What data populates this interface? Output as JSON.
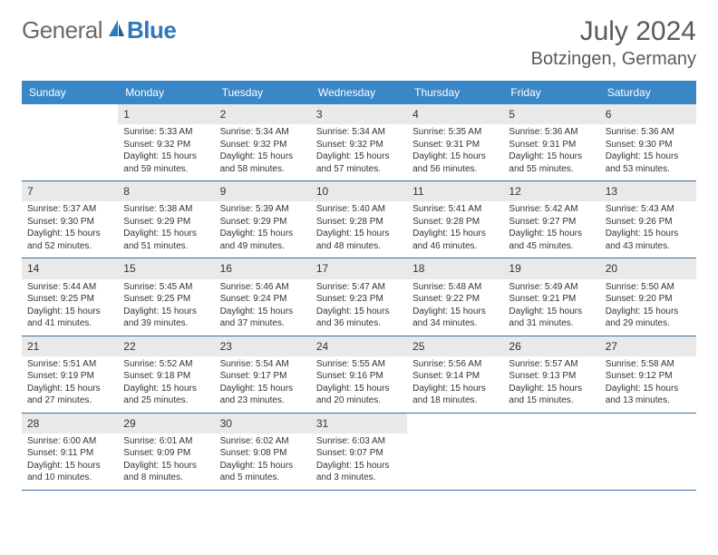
{
  "brand": {
    "general": "General",
    "blue": "Blue"
  },
  "title": {
    "month_year": "July 2024",
    "location": "Botzingen, Germany"
  },
  "colors": {
    "header_bg": "#3a87c8",
    "header_fg": "#ffffff",
    "strip_bg": "#e9e9e9",
    "week_border": "#3a6fa0",
    "text": "#333333",
    "brand_blue": "#2f78b9",
    "brand_gray": "#6a6a6a",
    "background": "#ffffff"
  },
  "typography": {
    "title_size": 30,
    "location_size": 20,
    "header_size": 12,
    "daynum_size": 12,
    "body_size": 10,
    "font_family": "Arial"
  },
  "days_header": [
    "Sunday",
    "Monday",
    "Tuesday",
    "Wednesday",
    "Thursday",
    "Friday",
    "Saturday"
  ],
  "weeks": [
    [
      null,
      {
        "n": "1",
        "sr": "Sunrise: 5:33 AM",
        "ss": "Sunset: 9:32 PM",
        "d1": "Daylight: 15 hours",
        "d2": "and 59 minutes."
      },
      {
        "n": "2",
        "sr": "Sunrise: 5:34 AM",
        "ss": "Sunset: 9:32 PM",
        "d1": "Daylight: 15 hours",
        "d2": "and 58 minutes."
      },
      {
        "n": "3",
        "sr": "Sunrise: 5:34 AM",
        "ss": "Sunset: 9:32 PM",
        "d1": "Daylight: 15 hours",
        "d2": "and 57 minutes."
      },
      {
        "n": "4",
        "sr": "Sunrise: 5:35 AM",
        "ss": "Sunset: 9:31 PM",
        "d1": "Daylight: 15 hours",
        "d2": "and 56 minutes."
      },
      {
        "n": "5",
        "sr": "Sunrise: 5:36 AM",
        "ss": "Sunset: 9:31 PM",
        "d1": "Daylight: 15 hours",
        "d2": "and 55 minutes."
      },
      {
        "n": "6",
        "sr": "Sunrise: 5:36 AM",
        "ss": "Sunset: 9:30 PM",
        "d1": "Daylight: 15 hours",
        "d2": "and 53 minutes."
      }
    ],
    [
      {
        "n": "7",
        "sr": "Sunrise: 5:37 AM",
        "ss": "Sunset: 9:30 PM",
        "d1": "Daylight: 15 hours",
        "d2": "and 52 minutes."
      },
      {
        "n": "8",
        "sr": "Sunrise: 5:38 AM",
        "ss": "Sunset: 9:29 PM",
        "d1": "Daylight: 15 hours",
        "d2": "and 51 minutes."
      },
      {
        "n": "9",
        "sr": "Sunrise: 5:39 AM",
        "ss": "Sunset: 9:29 PM",
        "d1": "Daylight: 15 hours",
        "d2": "and 49 minutes."
      },
      {
        "n": "10",
        "sr": "Sunrise: 5:40 AM",
        "ss": "Sunset: 9:28 PM",
        "d1": "Daylight: 15 hours",
        "d2": "and 48 minutes."
      },
      {
        "n": "11",
        "sr": "Sunrise: 5:41 AM",
        "ss": "Sunset: 9:28 PM",
        "d1": "Daylight: 15 hours",
        "d2": "and 46 minutes."
      },
      {
        "n": "12",
        "sr": "Sunrise: 5:42 AM",
        "ss": "Sunset: 9:27 PM",
        "d1": "Daylight: 15 hours",
        "d2": "and 45 minutes."
      },
      {
        "n": "13",
        "sr": "Sunrise: 5:43 AM",
        "ss": "Sunset: 9:26 PM",
        "d1": "Daylight: 15 hours",
        "d2": "and 43 minutes."
      }
    ],
    [
      {
        "n": "14",
        "sr": "Sunrise: 5:44 AM",
        "ss": "Sunset: 9:25 PM",
        "d1": "Daylight: 15 hours",
        "d2": "and 41 minutes."
      },
      {
        "n": "15",
        "sr": "Sunrise: 5:45 AM",
        "ss": "Sunset: 9:25 PM",
        "d1": "Daylight: 15 hours",
        "d2": "and 39 minutes."
      },
      {
        "n": "16",
        "sr": "Sunrise: 5:46 AM",
        "ss": "Sunset: 9:24 PM",
        "d1": "Daylight: 15 hours",
        "d2": "and 37 minutes."
      },
      {
        "n": "17",
        "sr": "Sunrise: 5:47 AM",
        "ss": "Sunset: 9:23 PM",
        "d1": "Daylight: 15 hours",
        "d2": "and 36 minutes."
      },
      {
        "n": "18",
        "sr": "Sunrise: 5:48 AM",
        "ss": "Sunset: 9:22 PM",
        "d1": "Daylight: 15 hours",
        "d2": "and 34 minutes."
      },
      {
        "n": "19",
        "sr": "Sunrise: 5:49 AM",
        "ss": "Sunset: 9:21 PM",
        "d1": "Daylight: 15 hours",
        "d2": "and 31 minutes."
      },
      {
        "n": "20",
        "sr": "Sunrise: 5:50 AM",
        "ss": "Sunset: 9:20 PM",
        "d1": "Daylight: 15 hours",
        "d2": "and 29 minutes."
      }
    ],
    [
      {
        "n": "21",
        "sr": "Sunrise: 5:51 AM",
        "ss": "Sunset: 9:19 PM",
        "d1": "Daylight: 15 hours",
        "d2": "and 27 minutes."
      },
      {
        "n": "22",
        "sr": "Sunrise: 5:52 AM",
        "ss": "Sunset: 9:18 PM",
        "d1": "Daylight: 15 hours",
        "d2": "and 25 minutes."
      },
      {
        "n": "23",
        "sr": "Sunrise: 5:54 AM",
        "ss": "Sunset: 9:17 PM",
        "d1": "Daylight: 15 hours",
        "d2": "and 23 minutes."
      },
      {
        "n": "24",
        "sr": "Sunrise: 5:55 AM",
        "ss": "Sunset: 9:16 PM",
        "d1": "Daylight: 15 hours",
        "d2": "and 20 minutes."
      },
      {
        "n": "25",
        "sr": "Sunrise: 5:56 AM",
        "ss": "Sunset: 9:14 PM",
        "d1": "Daylight: 15 hours",
        "d2": "and 18 minutes."
      },
      {
        "n": "26",
        "sr": "Sunrise: 5:57 AM",
        "ss": "Sunset: 9:13 PM",
        "d1": "Daylight: 15 hours",
        "d2": "and 15 minutes."
      },
      {
        "n": "27",
        "sr": "Sunrise: 5:58 AM",
        "ss": "Sunset: 9:12 PM",
        "d1": "Daylight: 15 hours",
        "d2": "and 13 minutes."
      }
    ],
    [
      {
        "n": "28",
        "sr": "Sunrise: 6:00 AM",
        "ss": "Sunset: 9:11 PM",
        "d1": "Daylight: 15 hours",
        "d2": "and 10 minutes."
      },
      {
        "n": "29",
        "sr": "Sunrise: 6:01 AM",
        "ss": "Sunset: 9:09 PM",
        "d1": "Daylight: 15 hours",
        "d2": "and 8 minutes."
      },
      {
        "n": "30",
        "sr": "Sunrise: 6:02 AM",
        "ss": "Sunset: 9:08 PM",
        "d1": "Daylight: 15 hours",
        "d2": "and 5 minutes."
      },
      {
        "n": "31",
        "sr": "Sunrise: 6:03 AM",
        "ss": "Sunset: 9:07 PM",
        "d1": "Daylight: 15 hours",
        "d2": "and 3 minutes."
      },
      null,
      null,
      null
    ]
  ]
}
